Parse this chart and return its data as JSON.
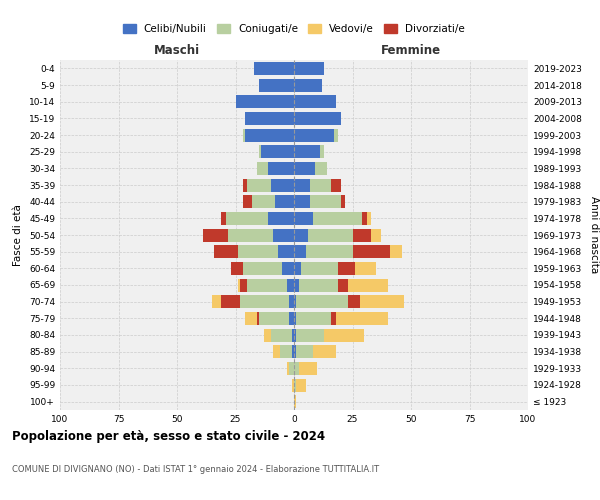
{
  "age_groups": [
    "100+",
    "95-99",
    "90-94",
    "85-89",
    "80-84",
    "75-79",
    "70-74",
    "65-69",
    "60-64",
    "55-59",
    "50-54",
    "45-49",
    "40-44",
    "35-39",
    "30-34",
    "25-29",
    "20-24",
    "15-19",
    "10-14",
    "5-9",
    "0-4"
  ],
  "birth_years": [
    "≤ 1923",
    "1924-1928",
    "1929-1933",
    "1934-1938",
    "1939-1943",
    "1944-1948",
    "1949-1953",
    "1954-1958",
    "1959-1963",
    "1964-1968",
    "1969-1973",
    "1974-1978",
    "1979-1983",
    "1984-1988",
    "1989-1993",
    "1994-1998",
    "1999-2003",
    "2004-2008",
    "2009-2013",
    "2014-2018",
    "2019-2023"
  ],
  "colors": {
    "celibi": "#4472c4",
    "coniugati": "#b8cfa0",
    "vedovi": "#f5c967",
    "divorziati": "#c0392b"
  },
  "maschi": {
    "celibi": [
      0,
      0,
      0,
      1,
      1,
      2,
      2,
      3,
      5,
      7,
      9,
      11,
      8,
      10,
      11,
      14,
      21,
      21,
      25,
      15,
      17
    ],
    "coniugati": [
      0,
      0,
      2,
      5,
      9,
      13,
      21,
      17,
      17,
      17,
      19,
      18,
      10,
      10,
      5,
      1,
      1,
      0,
      0,
      0,
      0
    ],
    "vedovi": [
      0,
      1,
      1,
      3,
      3,
      5,
      4,
      1,
      0,
      0,
      0,
      0,
      0,
      0,
      0,
      0,
      0,
      0,
      0,
      0,
      0
    ],
    "divorziati": [
      0,
      0,
      0,
      0,
      0,
      1,
      8,
      3,
      5,
      10,
      11,
      2,
      4,
      2,
      0,
      0,
      0,
      0,
      0,
      0,
      0
    ]
  },
  "femmine": {
    "celibi": [
      0,
      0,
      0,
      1,
      1,
      1,
      1,
      2,
      3,
      5,
      6,
      8,
      7,
      7,
      9,
      11,
      17,
      20,
      18,
      12,
      13
    ],
    "coniugati": [
      0,
      1,
      2,
      7,
      12,
      15,
      22,
      17,
      16,
      20,
      19,
      21,
      13,
      9,
      5,
      2,
      2,
      0,
      0,
      0,
      0
    ],
    "vedovi": [
      1,
      4,
      8,
      10,
      17,
      22,
      19,
      17,
      9,
      5,
      4,
      2,
      0,
      0,
      0,
      0,
      0,
      0,
      0,
      0,
      0
    ],
    "divorziati": [
      0,
      0,
      0,
      0,
      0,
      2,
      5,
      4,
      7,
      16,
      8,
      2,
      2,
      4,
      0,
      0,
      0,
      0,
      0,
      0,
      0
    ]
  },
  "xlim": 100,
  "title": "Popolazione per età, sesso e stato civile - 2024",
  "subtitle": "COMUNE DI DIVIGNANO (NO) - Dati ISTAT 1° gennaio 2024 - Elaborazione TUTTITALIA.IT",
  "ylabel_left": "Fasce di età",
  "ylabel_right": "Anni di nascita",
  "maschi_label": "Maschi",
  "femmine_label": "Femmine",
  "legend_labels": [
    "Celibi/Nubili",
    "Coniugati/e",
    "Vedovi/e",
    "Divorziati/e"
  ],
  "background_color": "#ffffff",
  "plot_bg": "#f0f0f0",
  "grid_color": "#cccccc"
}
